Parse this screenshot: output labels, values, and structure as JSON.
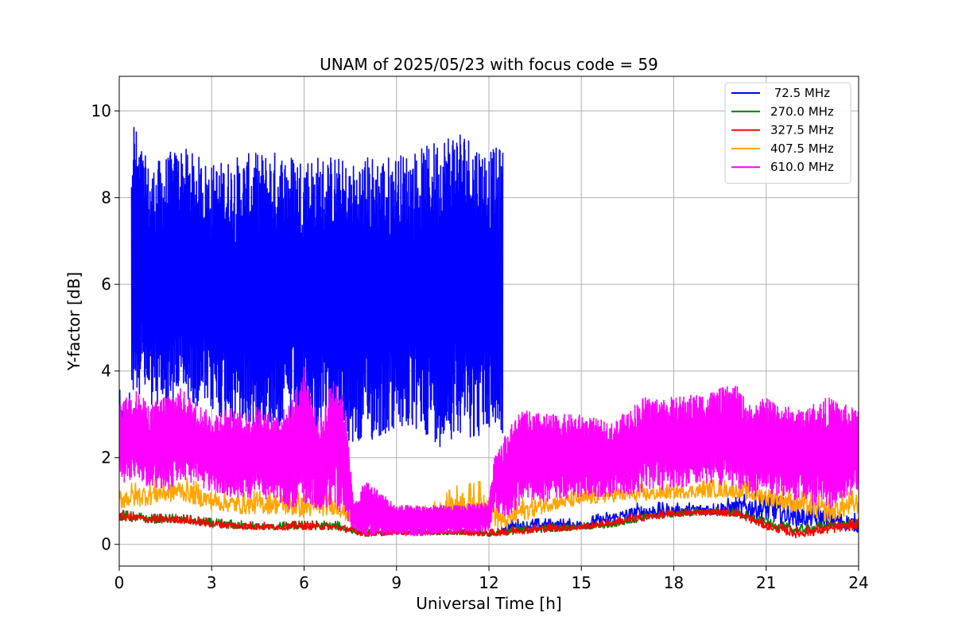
{
  "chart_data": {
    "type": "line",
    "title": "UNAM of 2025/05/23 with focus code = 59",
    "xlabel": "Universal Time [h]",
    "ylabel": "Y-factor [dB]",
    "xlim": [
      0,
      24
    ],
    "ylim": [
      -0.5,
      10.8
    ],
    "xticks": [
      0,
      3,
      6,
      9,
      12,
      15,
      18,
      21,
      24
    ],
    "yticks": [
      0,
      2,
      4,
      6,
      8,
      10
    ],
    "grid": true,
    "legend_position": "top-right",
    "series": [
      {
        "name": " 72.5 MHz",
        "color": "#0000ff",
        "segments": [
          {
            "x_range": [
              0.0,
              0.35
            ],
            "envelope": [
              [
                0.0,
                2.0,
                3.6
              ],
              [
                0.2,
                2.2,
                3.2
              ],
              [
                0.35,
                2.5,
                3.6
              ]
            ]
          },
          {
            "x_range": [
              0.4,
              12.45
            ],
            "envelope": [
              [
                0.4,
                3.0,
                10.3
              ],
              [
                0.6,
                3.5,
                9.4
              ],
              [
                1.0,
                3.2,
                8.7
              ],
              [
                1.5,
                3.0,
                9.0
              ],
              [
                2.0,
                3.4,
                9.2
              ],
              [
                3.0,
                3.0,
                8.8
              ],
              [
                4.0,
                2.6,
                9.0
              ],
              [
                5.0,
                2.7,
                9.1
              ],
              [
                6.0,
                2.6,
                9.0
              ],
              [
                7.0,
                2.4,
                9.0
              ],
              [
                7.5,
                2.2,
                8.8
              ],
              [
                8.0,
                2.3,
                9.0
              ],
              [
                9.0,
                2.6,
                9.0
              ],
              [
                10.0,
                2.5,
                9.2
              ],
              [
                10.5,
                2.2,
                9.5
              ],
              [
                11.0,
                2.6,
                9.7
              ],
              [
                11.5,
                2.4,
                9.4
              ],
              [
                12.0,
                2.6,
                9.1
              ],
              [
                12.45,
                2.5,
                9.2
              ]
            ]
          },
          {
            "x_range": [
              12.45,
              24.0
            ],
            "envelope": [
              [
                12.45,
                0.2,
                0.55
              ],
              [
                13.0,
                0.25,
                0.6
              ],
              [
                14.0,
                0.3,
                0.6
              ],
              [
                15.0,
                0.3,
                0.6
              ],
              [
                16.0,
                0.4,
                0.8
              ],
              [
                17.0,
                0.5,
                1.0
              ],
              [
                18.0,
                0.6,
                0.95
              ],
              [
                19.0,
                0.6,
                1.0
              ],
              [
                20.0,
                0.6,
                1.1
              ],
              [
                20.5,
                0.5,
                1.2
              ],
              [
                21.0,
                0.4,
                1.2
              ],
              [
                22.0,
                0.3,
                1.0
              ],
              [
                23.0,
                0.3,
                0.9
              ],
              [
                24.0,
                0.2,
                0.7
              ]
            ]
          }
        ]
      },
      {
        "name": "270.0 MHz",
        "color": "#008000",
        "segments": [
          {
            "x_range": [
              0.0,
              24.0
            ],
            "envelope": [
              [
                0.0,
                0.5,
                0.8
              ],
              [
                1.0,
                0.45,
                0.7
              ],
              [
                2.0,
                0.45,
                0.7
              ],
              [
                3.0,
                0.35,
                0.6
              ],
              [
                4.0,
                0.3,
                0.55
              ],
              [
                5.0,
                0.3,
                0.5
              ],
              [
                6.0,
                0.3,
                0.55
              ],
              [
                7.0,
                0.3,
                0.55
              ],
              [
                8.0,
                0.15,
                0.35
              ],
              [
                9.0,
                0.2,
                0.35
              ],
              [
                10.0,
                0.2,
                0.35
              ],
              [
                11.0,
                0.2,
                0.35
              ],
              [
                12.0,
                0.15,
                0.35
              ],
              [
                13.0,
                0.2,
                0.45
              ],
              [
                14.0,
                0.25,
                0.5
              ],
              [
                15.0,
                0.3,
                0.5
              ],
              [
                16.0,
                0.35,
                0.55
              ],
              [
                17.0,
                0.5,
                0.75
              ],
              [
                18.0,
                0.6,
                0.8
              ],
              [
                19.0,
                0.65,
                0.85
              ],
              [
                20.0,
                0.6,
                0.85
              ],
              [
                21.0,
                0.35,
                0.6
              ],
              [
                22.0,
                0.2,
                0.45
              ],
              [
                23.0,
                0.3,
                0.55
              ],
              [
                24.0,
                0.35,
                0.6
              ]
            ]
          }
        ]
      },
      {
        "name": "327.5 MHz",
        "color": "#ff0000",
        "segments": [
          {
            "x_range": [
              0.0,
              24.0
            ],
            "envelope": [
              [
                0.0,
                0.5,
                0.8
              ],
              [
                1.0,
                0.45,
                0.7
              ],
              [
                2.0,
                0.45,
                0.7
              ],
              [
                3.0,
                0.35,
                0.6
              ],
              [
                4.0,
                0.3,
                0.55
              ],
              [
                5.0,
                0.3,
                0.5
              ],
              [
                6.0,
                0.3,
                0.55
              ],
              [
                7.0,
                0.3,
                0.5
              ],
              [
                8.0,
                0.15,
                0.35
              ],
              [
                9.0,
                0.2,
                0.35
              ],
              [
                10.0,
                0.2,
                0.35
              ],
              [
                11.0,
                0.2,
                0.35
              ],
              [
                12.0,
                0.15,
                0.35
              ],
              [
                13.0,
                0.2,
                0.45
              ],
              [
                14.0,
                0.25,
                0.5
              ],
              [
                15.0,
                0.3,
                0.5
              ],
              [
                16.0,
                0.4,
                0.6
              ],
              [
                17.0,
                0.5,
                0.75
              ],
              [
                18.0,
                0.6,
                0.8
              ],
              [
                19.0,
                0.65,
                0.85
              ],
              [
                20.0,
                0.6,
                0.85
              ],
              [
                21.0,
                0.3,
                0.55
              ],
              [
                22.0,
                0.1,
                0.4
              ],
              [
                23.0,
                0.2,
                0.5
              ],
              [
                24.0,
                0.3,
                0.6
              ]
            ]
          }
        ]
      },
      {
        "name": "407.5 MHz",
        "color": "#ffa500",
        "segments": [
          {
            "x_range": [
              0.0,
              24.0
            ],
            "envelope": [
              [
                0.0,
                0.7,
                1.4
              ],
              [
                1.0,
                0.8,
                1.5
              ],
              [
                2.0,
                0.9,
                1.6
              ],
              [
                3.0,
                0.7,
                1.3
              ],
              [
                4.0,
                0.6,
                1.2
              ],
              [
                5.0,
                0.6,
                1.3
              ],
              [
                6.0,
                0.5,
                1.2
              ],
              [
                7.0,
                0.6,
                1.2
              ],
              [
                7.5,
                0.4,
                0.9
              ],
              [
                8.0,
                0.3,
                0.8
              ],
              [
                9.0,
                0.4,
                0.9
              ],
              [
                10.0,
                0.4,
                0.9
              ],
              [
                11.0,
                0.5,
                1.4
              ],
              [
                12.0,
                0.3,
                1.5
              ],
              [
                12.5,
                0.2,
                0.8
              ],
              [
                13.0,
                0.4,
                1.1
              ],
              [
                14.0,
                0.7,
                1.2
              ],
              [
                15.0,
                0.8,
                1.3
              ],
              [
                16.0,
                0.9,
                1.4
              ],
              [
                17.0,
                0.9,
                1.4
              ],
              [
                18.0,
                1.0,
                1.4
              ],
              [
                19.0,
                1.0,
                1.5
              ],
              [
                20.0,
                1.0,
                1.5
              ],
              [
                21.0,
                0.8,
                1.4
              ],
              [
                22.0,
                0.6,
                1.3
              ],
              [
                23.0,
                0.4,
                1.1
              ],
              [
                24.0,
                0.6,
                1.3
              ]
            ]
          }
        ]
      },
      {
        "name": "610.0 MHz",
        "color": "#ff00ff",
        "segments": [
          {
            "x_range": [
              0.0,
              24.0
            ],
            "envelope": [
              [
                0.0,
                1.4,
                3.2
              ],
              [
                0.5,
                1.5,
                3.6
              ],
              [
                1.0,
                1.3,
                3.2
              ],
              [
                1.5,
                1.2,
                3.5
              ],
              [
                2.0,
                1.5,
                3.6
              ],
              [
                2.5,
                1.3,
                3.3
              ],
              [
                3.0,
                1.2,
                3.0
              ],
              [
                3.5,
                1.1,
                3.2
              ],
              [
                4.0,
                1.0,
                3.0
              ],
              [
                4.5,
                1.1,
                3.2
              ],
              [
                5.0,
                1.0,
                3.0
              ],
              [
                5.5,
                0.8,
                3.2
              ],
              [
                6.0,
                0.9,
                4.1
              ],
              [
                6.5,
                0.8,
                2.8
              ],
              [
                7.0,
                0.9,
                4.1
              ],
              [
                7.4,
                0.5,
                3.0
              ],
              [
                7.6,
                0.3,
                0.9
              ],
              [
                8.0,
                0.2,
                1.5
              ],
              [
                9.0,
                0.2,
                0.9
              ],
              [
                10.0,
                0.2,
                0.9
              ],
              [
                11.0,
                0.25,
                0.9
              ],
              [
                12.0,
                0.3,
                1.0
              ],
              [
                12.2,
                0.9,
                2.2
              ],
              [
                12.5,
                0.5,
                2.5
              ],
              [
                13.0,
                0.9,
                3.1
              ],
              [
                14.0,
                1.0,
                3.0
              ],
              [
                15.0,
                1.1,
                3.0
              ],
              [
                16.0,
                1.1,
                2.8
              ],
              [
                17.0,
                1.2,
                3.4
              ],
              [
                18.0,
                1.3,
                3.4
              ],
              [
                19.0,
                1.4,
                3.5
              ],
              [
                20.0,
                1.3,
                3.7
              ],
              [
                20.5,
                1.2,
                3.2
              ],
              [
                21.0,
                1.2,
                3.4
              ],
              [
                22.0,
                1.0,
                3.1
              ],
              [
                23.0,
                0.8,
                3.4
              ],
              [
                24.0,
                1.2,
                3.1
              ]
            ]
          }
        ]
      }
    ]
  }
}
